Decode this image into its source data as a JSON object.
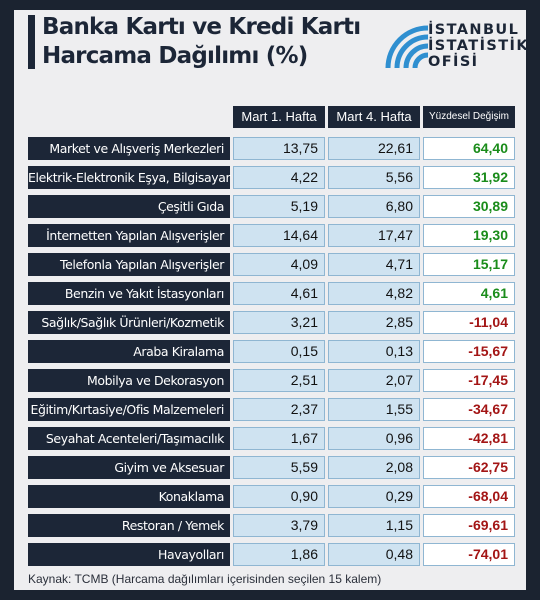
{
  "title_line1": "Banka Kartı ve Kredi Kartı",
  "title_line2": "Harcama Dağılımı (%)",
  "logo": {
    "line1": "İSTANBUL",
    "line2": "İSTATİSTİK",
    "line3": "OFİSİ"
  },
  "source": "Kaynak: TCMB (Harcama dağılımları içerisinden seçilen 15 kalem)",
  "colors": {
    "positive": "#1a8c1a",
    "negative": "#a31515",
    "header": "#1c2637",
    "cell": "#cfe3f1"
  },
  "chart_data": {
    "type": "table",
    "columns": [
      "Mart 1. Hafta",
      "Mart 4. Hafta",
      "Yüzdesel Değişim"
    ],
    "rows": [
      {
        "label": "Market ve Alışveriş Merkezleri",
        "w1": "13,75",
        "w4": "22,61",
        "change": "64,40"
      },
      {
        "label": "Elektrik-Elektronik Eşya, Bilgisayar",
        "w1": "4,22",
        "w4": "5,56",
        "change": "31,92"
      },
      {
        "label": "Çeşitli Gıda",
        "w1": "5,19",
        "w4": "6,80",
        "change": "30,89"
      },
      {
        "label": "İnternetten Yapılan Alışverişler",
        "w1": "14,64",
        "w4": "17,47",
        "change": "19,30"
      },
      {
        "label": "Telefonla Yapılan Alışverişler",
        "w1": "4,09",
        "w4": "4,71",
        "change": "15,17"
      },
      {
        "label": "Benzin ve Yakıt İstasyonları",
        "w1": "4,61",
        "w4": "4,82",
        "change": "4,61"
      },
      {
        "label": "Sağlık/Sağlık Ürünleri/Kozmetik",
        "w1": "3,21",
        "w4": "2,85",
        "change": "-11,04"
      },
      {
        "label": "Araba Kiralama",
        "w1": "0,15",
        "w4": "0,13",
        "change": "-15,67"
      },
      {
        "label": "Mobilya ve Dekorasyon",
        "w1": "2,51",
        "w4": "2,07",
        "change": "-17,45"
      },
      {
        "label": "Eğitim/Kırtasiye/Ofis Malzemeleri",
        "w1": "2,37",
        "w4": "1,55",
        "change": "-34,67"
      },
      {
        "label": "Seyahat Acenteleri/Taşımacılık",
        "w1": "1,67",
        "w4": "0,96",
        "change": "-42,81"
      },
      {
        "label": "Giyim ve Aksesuar",
        "w1": "5,59",
        "w4": "2,08",
        "change": "-62,75"
      },
      {
        "label": "Konaklama",
        "w1": "0,90",
        "w4": "0,29",
        "change": "-68,04"
      },
      {
        "label": "Restoran / Yemek",
        "w1": "3,79",
        "w4": "1,15",
        "change": "-69,61"
      },
      {
        "label": "Havayolları",
        "w1": "1,86",
        "w4": "0,48",
        "change": "-74,01"
      }
    ]
  }
}
